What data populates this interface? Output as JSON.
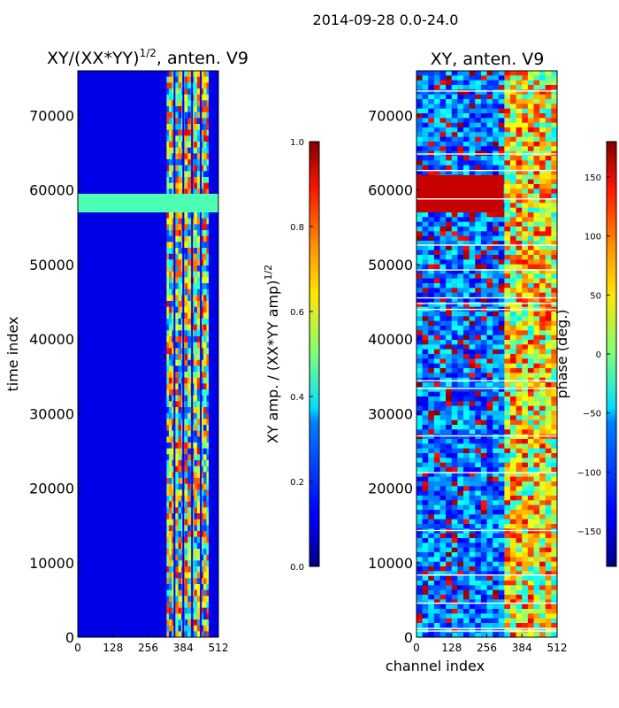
{
  "figure": {
    "suptitle": "2014-09-28 0.0-24.0"
  },
  "chart_data": [
    {
      "type": "heatmap",
      "title_main": "XY/(XX*YY)",
      "title_exp": "1/2",
      "title_suffix": ", anten. V9",
      "xlabel": "",
      "ylabel": "time index",
      "xlim": [
        0,
        512
      ],
      "ylim": [
        0,
        76000
      ],
      "xticks": [
        "0",
        "128",
        "256",
        "384",
        "512"
      ],
      "xtick_values": [
        0,
        128,
        256,
        384,
        512
      ],
      "yticks": [
        "0",
        "10000",
        "20000",
        "30000",
        "40000",
        "50000",
        "60000",
        "70000"
      ],
      "ytick_values": [
        0,
        10000,
        20000,
        30000,
        40000,
        50000,
        60000,
        70000
      ],
      "colormap": "jet",
      "colorbar": {
        "label_main": "XY amp. / (XX*YY amp)",
        "label_exp": "1/2",
        "range": [
          0.0,
          1.0
        ],
        "ticks": [
          "0.0",
          "0.2",
          "0.4",
          "0.6",
          "0.8",
          "1.0"
        ],
        "tick_values": [
          0.0,
          0.2,
          0.4,
          0.6,
          0.8,
          1.0
        ]
      },
      "bright_band_channels": [
        320,
        480
      ],
      "bright_time_band": [
        57000,
        59500
      ],
      "background_level": 0.1
    },
    {
      "type": "heatmap",
      "title": "XY, anten. V9",
      "xlabel": "channel index",
      "ylabel": "",
      "xlim": [
        0,
        512
      ],
      "ylim": [
        0,
        76000
      ],
      "xticks": [
        "0",
        "128",
        "256",
        "384",
        "512"
      ],
      "xtick_values": [
        0,
        128,
        256,
        384,
        512
      ],
      "yticks": [
        "0",
        "10000",
        "20000",
        "30000",
        "40000",
        "50000",
        "60000",
        "70000"
      ],
      "ytick_values": [
        0,
        10000,
        20000,
        30000,
        40000,
        50000,
        60000,
        70000
      ],
      "colormap": "jet",
      "colorbar": {
        "label": "phase (deg.)",
        "range": [
          -180,
          180
        ],
        "ticks": [
          "−150",
          "−100",
          "−50",
          "0",
          "50",
          "100",
          "150"
        ],
        "tick_values": [
          -150,
          -100,
          -50,
          0,
          50,
          100,
          150
        ]
      },
      "red_time_band": [
        57000,
        62000
      ],
      "bright_band_channels": [
        320,
        512
      ]
    }
  ]
}
